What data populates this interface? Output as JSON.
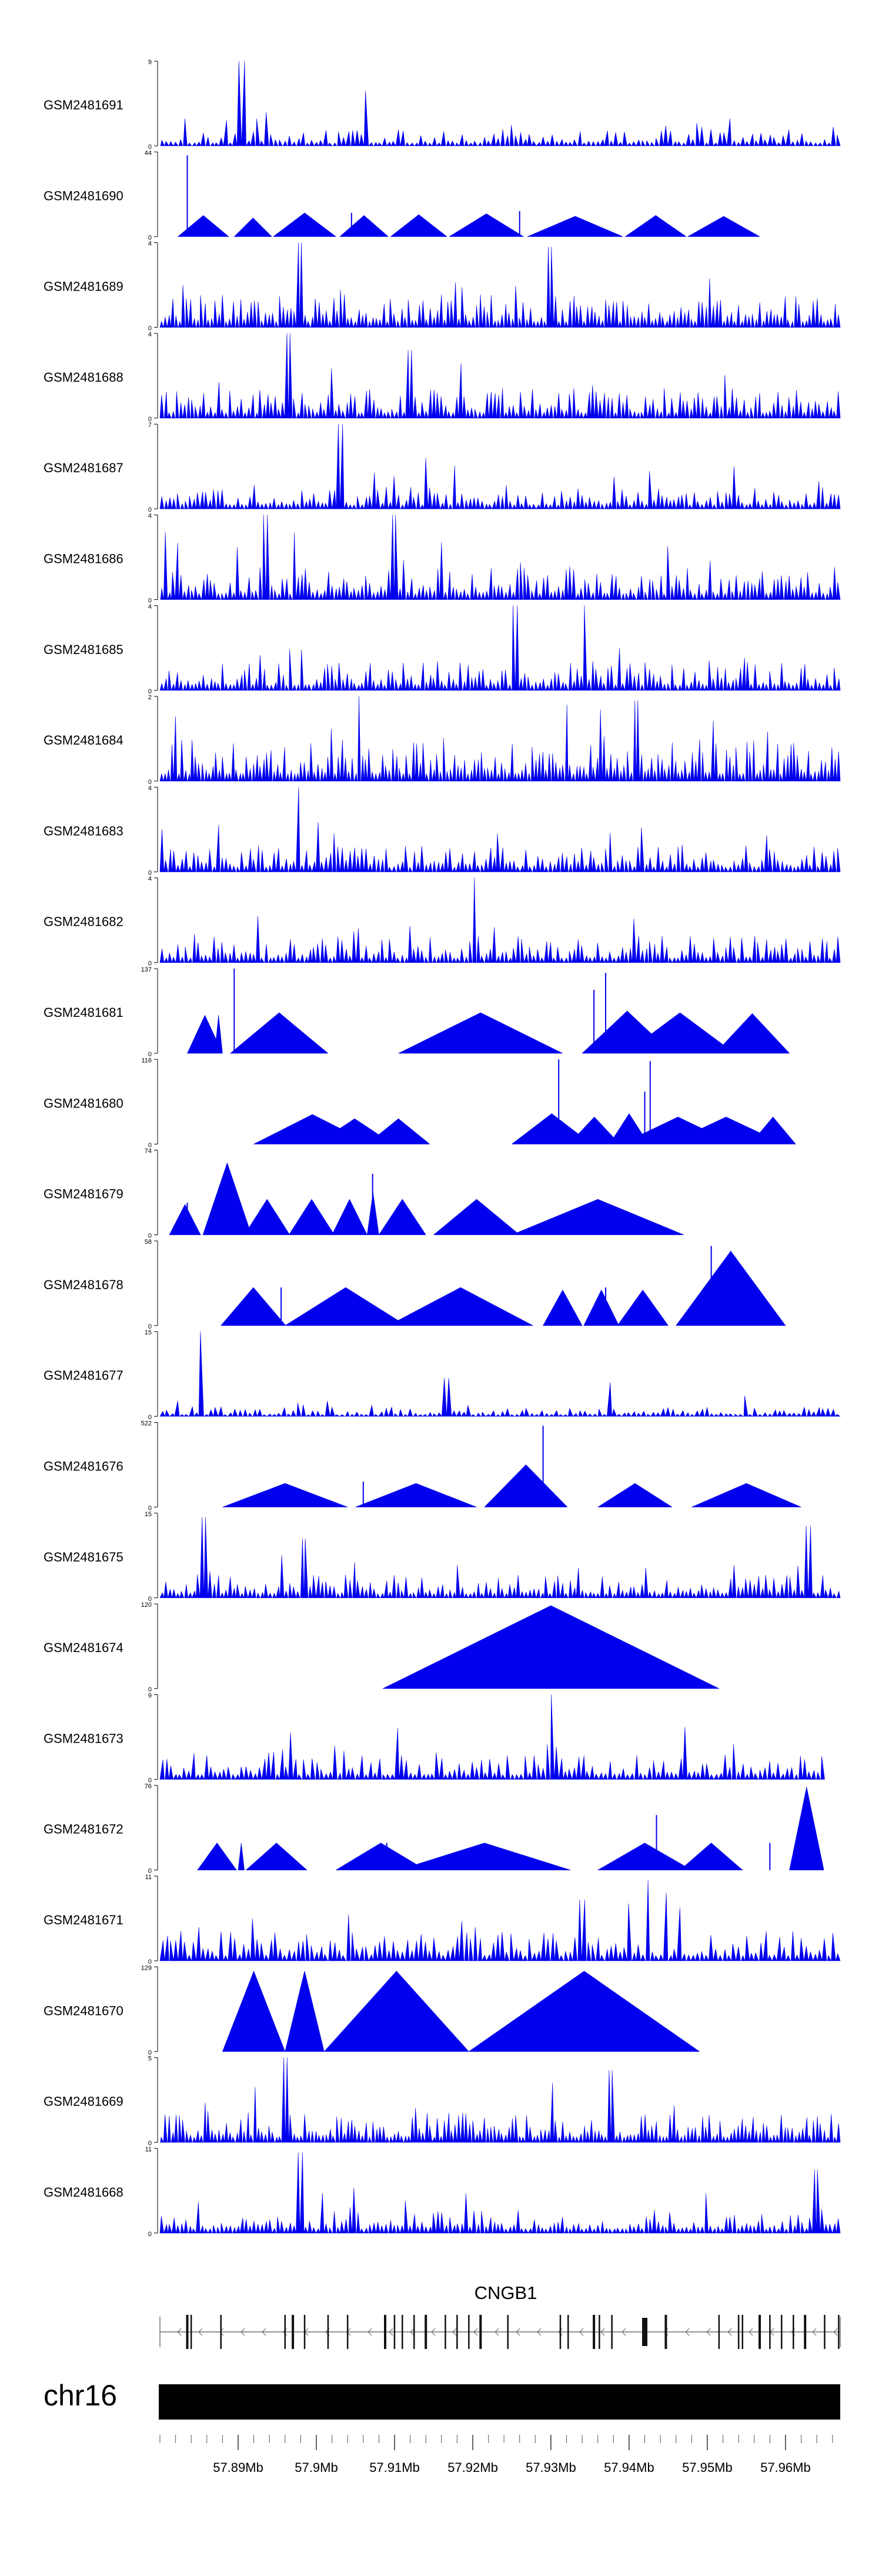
{
  "chart_data": {
    "type": "area",
    "title": "",
    "description_note": "Stacked per-sample coverage tracks over a genomic region; values in each track are relative peak heights on that track's own y-scale.",
    "x": {
      "chromosome": "chr16",
      "range_mb": [
        57.88,
        57.967
      ],
      "tick_labels": [
        "57.89Mb",
        "57.9Mb",
        "57.91Mb",
        "57.92Mb",
        "57.93Mb",
        "57.94Mb",
        "57.95Mb",
        "57.96Mb"
      ],
      "tick_values_mb": [
        57.89,
        57.9,
        57.91,
        57.92,
        57.93,
        57.94,
        57.95,
        57.96
      ]
    },
    "gene": {
      "name": "CNGB1",
      "strand": "-",
      "exons_mb": [
        57.8835,
        57.884,
        57.8878,
        57.896,
        57.897,
        57.8985,
        57.9015,
        57.904,
        57.9088,
        57.91,
        57.911,
        57.9125,
        57.914,
        57.9165,
        57.918,
        57.9195,
        57.921,
        57.9245,
        57.9312,
        57.9322,
        57.9355,
        57.9362,
        57.9378,
        57.942,
        57.9447,
        57.9515,
        57.954,
        57.9545,
        57.9567,
        57.958,
        57.9595,
        57.961,
        57.9625,
        57.965,
        57.9668
      ]
    },
    "series": [
      {
        "name": "GSM2481691",
        "ymax": 9,
        "style": "dense",
        "n": 150,
        "base": 0.1,
        "peaks": [
          [
            57.8905,
            1.0
          ],
          [
            57.9065,
            0.65
          ]
        ]
      },
      {
        "name": "GSM2481690",
        "ymax": 44,
        "style": "sparse",
        "starts": [
          57.8823,
          57.8895,
          57.8945,
          57.903,
          57.9095,
          57.917,
          57.927,
          57.9395,
          57.9475
        ],
        "widths": [
          0.0065,
          0.0048,
          0.008,
          0.0062,
          0.0072,
          0.0095,
          0.0122,
          0.0078,
          0.0092
        ],
        "heights": [
          0.25,
          0.22,
          0.28,
          0.25,
          0.26,
          0.27,
          0.24,
          0.25,
          0.24
        ],
        "spikes": [
          [
            57.8835,
            0.96
          ],
          [
            57.9045,
            0.28
          ],
          [
            57.926,
            0.3
          ]
        ]
      },
      {
        "name": "GSM2481689",
        "ymax": 4,
        "style": "dense",
        "n": 190,
        "base": 0.2,
        "peaks": [
          [
            57.898,
            1.0
          ],
          [
            57.93,
            0.95
          ]
        ]
      },
      {
        "name": "GSM2481688",
        "ymax": 4,
        "style": "dense",
        "n": 180,
        "base": 0.18,
        "peaks": [
          [
            57.8965,
            1.0
          ],
          [
            57.912,
            0.8
          ]
        ]
      },
      {
        "name": "GSM2481687",
        "ymax": 7,
        "style": "dense",
        "n": 170,
        "base": 0.14,
        "peaks": [
          [
            57.903,
            1.0
          ],
          [
            57.914,
            0.6
          ]
        ]
      },
      {
        "name": "GSM2481686",
        "ymax": 4,
        "style": "dense",
        "n": 180,
        "base": 0.2,
        "peaks": [
          [
            57.8935,
            1.0
          ],
          [
            57.9098,
            1.0
          ]
        ]
      },
      {
        "name": "GSM2481685",
        "ymax": 4,
        "style": "dense",
        "n": 180,
        "base": 0.18,
        "peaks": [
          [
            57.9255,
            1.0
          ],
          [
            57.9345,
            1.0
          ]
        ]
      },
      {
        "name": "GSM2481684",
        "ymax": 2,
        "style": "dense",
        "n": 200,
        "base": 0.25,
        "peaks": [
          [
            57.9055,
            1.0
          ],
          [
            57.941,
            0.95
          ]
        ]
      },
      {
        "name": "GSM2481683",
        "ymax": 4,
        "style": "dense",
        "n": 170,
        "base": 0.16,
        "peaks": [
          [
            57.8975,
            1.0
          ]
        ]
      },
      {
        "name": "GSM2481682",
        "ymax": 4,
        "style": "dense",
        "n": 170,
        "base": 0.16,
        "peaks": [
          [
            57.92,
            1.0
          ]
        ]
      },
      {
        "name": "GSM2481681",
        "ymax": 137,
        "style": "sparse",
        "starts": [
          57.8835,
          57.887,
          57.889,
          57.9105,
          57.934,
          57.9395,
          57.951
        ],
        "widths": [
          0.0045,
          0.001,
          0.0125,
          0.021,
          0.0115,
          0.014,
          0.0095
        ],
        "heights": [
          0.45,
          0.45,
          0.48,
          0.48,
          0.5,
          0.48,
          0.47
        ],
        "spikes": [
          [
            57.8895,
            1.0
          ],
          [
            57.937,
            0.95
          ],
          [
            57.9355,
            0.75
          ]
        ]
      },
      {
        "name": "GSM2481680",
        "ymax": 116,
        "style": "sparse",
        "starts": [
          57.892,
          57.9,
          57.9065,
          57.925,
          57.9323,
          57.9375,
          57.939,
          57.945,
          57.9555
        ],
        "widths": [
          0.015,
          0.0098,
          0.008,
          0.0102,
          0.0065,
          0.005,
          0.0145,
          0.0148,
          0.0058
        ],
        "heights": [
          0.35,
          0.3,
          0.3,
          0.36,
          0.32,
          0.36,
          0.32,
          0.32,
          0.32
        ],
        "spikes": [
          [
            57.931,
            1.0
          ],
          [
            57.9427,
            0.98
          ],
          [
            57.942,
            0.62
          ]
        ]
      },
      {
        "name": "GSM2481679",
        "ymax": 74,
        "style": "sparse",
        "starts": [
          57.8812,
          57.8855,
          57.8908,
          57.8965,
          57.902,
          57.9065,
          57.908,
          57.915,
          57.925
        ],
        "widths": [
          0.004,
          0.0062,
          0.0058,
          0.0058,
          0.0045,
          0.0015,
          0.006,
          0.011,
          0.022
        ],
        "heights": [
          0.36,
          0.85,
          0.42,
          0.42,
          0.42,
          0.5,
          0.42,
          0.42,
          0.42
        ],
        "spikes": [
          [
            57.9072,
            0.72
          ],
          [
            57.8835,
            0.38
          ]
        ]
      },
      {
        "name": "GSM2481678",
        "ymax": 58,
        "style": "sparse",
        "starts": [
          57.8878,
          57.896,
          57.9092,
          57.929,
          57.9342,
          57.9385,
          57.946
        ],
        "widths": [
          0.0083,
          0.0155,
          0.0185,
          0.005,
          0.0045,
          0.0065,
          0.014
        ],
        "heights": [
          0.45,
          0.45,
          0.45,
          0.42,
          0.42,
          0.42,
          0.88
        ],
        "spikes": [
          [
            57.8955,
            0.45
          ],
          [
            57.937,
            0.45
          ],
          [
            57.9505,
            0.94
          ]
        ]
      },
      {
        "name": "GSM2481677",
        "ymax": 15,
        "style": "dense",
        "n": 140,
        "base": 0.06,
        "peaks": [
          [
            57.8855,
            1.0
          ],
          [
            57.9165,
            0.45
          ],
          [
            57.9375,
            0.4
          ]
        ]
      },
      {
        "name": "GSM2481676",
        "ymax": 522,
        "style": "sparse",
        "starts": [
          57.888,
          57.905,
          57.9215,
          57.936,
          57.948
        ],
        "widths": [
          0.016,
          0.0155,
          0.0106,
          0.0095,
          0.014
        ],
        "heights": [
          0.28,
          0.28,
          0.5,
          0.28,
          0.28
        ],
        "spikes": [
          [
            57.929,
            0.96
          ],
          [
            57.906,
            0.3
          ]
        ]
      },
      {
        "name": "GSM2481675",
        "ymax": 15,
        "style": "dense",
        "n": 170,
        "base": 0.14,
        "peaks": [
          [
            57.8855,
            0.95
          ],
          [
            57.8985,
            0.7
          ],
          [
            57.963,
            0.85
          ]
        ]
      },
      {
        "name": "GSM2481674",
        "ymax": 120,
        "style": "sparse",
        "starts": [
          57.9085
        ],
        "widths": [
          0.043
        ],
        "heights": [
          0.98
        ],
        "spikes": []
      },
      {
        "name": "GSM2481673",
        "ymax": 9,
        "style": "dense",
        "n": 150,
        "base": 0.16,
        "peaks": [
          [
            57.93,
            1.0
          ],
          [
            57.8965,
            0.55
          ]
        ],
        "xend": 57.965
      },
      {
        "name": "GSM2481672",
        "ymax": 76,
        "style": "sparse",
        "starts": [
          57.8848,
          57.89,
          57.891,
          57.9025,
          57.9105,
          57.936,
          57.9465,
          57.9605
        ],
        "widths": [
          0.005,
          0.0008,
          0.0078,
          0.0115,
          0.022,
          0.012,
          0.008,
          0.0044
        ],
        "heights": [
          0.32,
          0.32,
          0.32,
          0.32,
          0.32,
          0.32,
          0.32,
          0.98
        ],
        "spikes": [
          [
            57.9435,
            0.65
          ],
          [
            57.958,
            0.32
          ],
          [
            57.909,
            0.32
          ]
        ]
      },
      {
        "name": "GSM2481671",
        "ymax": 11,
        "style": "dense",
        "n": 150,
        "base": 0.18,
        "peaks": [
          [
            57.934,
            0.72
          ],
          [
            57.9425,
            0.95
          ],
          [
            57.9445,
            0.8
          ]
        ]
      },
      {
        "name": "GSM2481670",
        "ymax": 129,
        "style": "sparse",
        "starts": [
          57.888,
          57.896,
          57.901,
          57.9195
        ],
        "widths": [
          0.008,
          0.005,
          0.0185,
          0.0295
        ],
        "heights": [
          0.95,
          0.95,
          0.95,
          0.95
        ],
        "spikes": []
      },
      {
        "name": "GSM2481669",
        "ymax": 5,
        "style": "dense",
        "n": 190,
        "base": 0.18,
        "peaks": [
          [
            57.896,
            1.0
          ],
          [
            57.9375,
            0.85
          ]
        ]
      },
      {
        "name": "GSM2481668",
        "ymax": 11,
        "style": "dense",
        "n": 170,
        "base": 0.14,
        "peaks": [
          [
            57.898,
            0.95
          ],
          [
            57.964,
            0.75
          ]
        ]
      }
    ]
  }
}
